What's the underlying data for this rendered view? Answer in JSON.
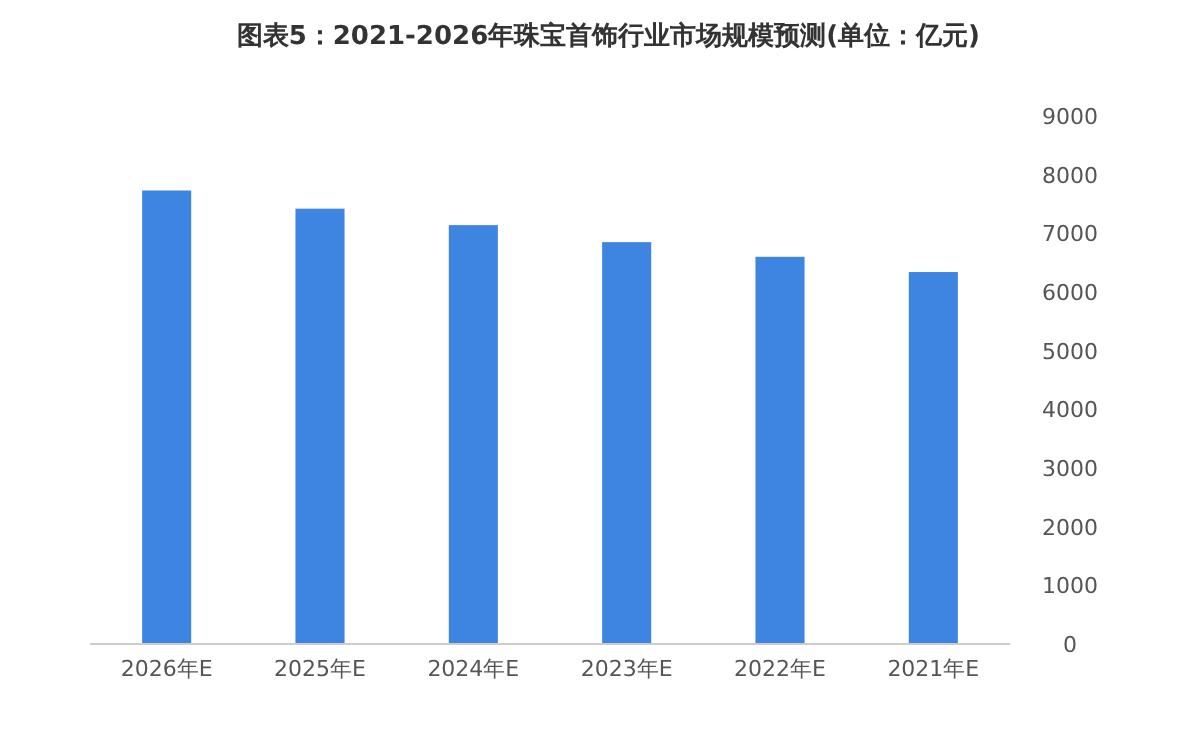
{
  "chart_data": {
    "type": "bar",
    "title": "图表5：2021-2026年珠宝首饰行业市场规模预测(单位：亿元)",
    "categories": [
      "2026年E",
      "2025年E",
      "2024年E",
      "2023年E",
      "2022年E",
      "2021年E"
    ],
    "values": [
      7730,
      7420,
      7140,
      6850,
      6600,
      6340
    ],
    "color": "#3d85e0",
    "ylim": [
      0,
      9000
    ],
    "yticks": [
      0,
      1000,
      2000,
      3000,
      4000,
      5000,
      6000,
      7000,
      8000,
      9000
    ],
    "grid": false
  }
}
